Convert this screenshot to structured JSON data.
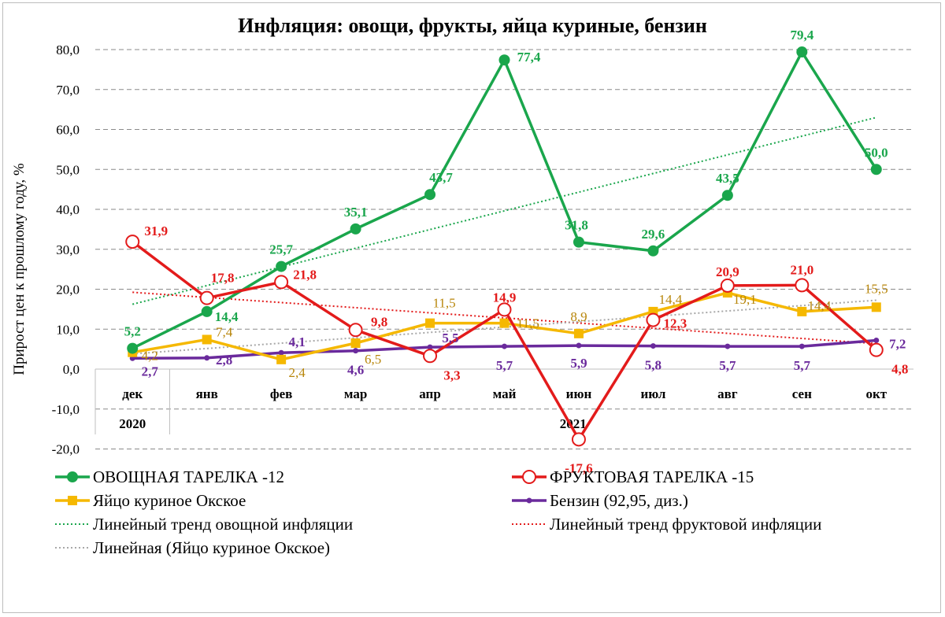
{
  "chart_data": {
    "type": "line",
    "title": "Инфляция: овощи, фрукты, яйца куриные, бензин",
    "ylabel": "Прирост цен к прошлому году, %",
    "ylim": [
      -20,
      80
    ],
    "yticks": [
      "-20,0",
      "-10,0",
      "0,0",
      "10,0",
      "20,0",
      "30,0",
      "40,0",
      "50,0",
      "60,0",
      "70,0",
      "80,0"
    ],
    "categories": [
      "дек",
      "янв",
      "фев",
      "мар",
      "апр",
      "май",
      "июн",
      "июл",
      "авг",
      "сен",
      "окт"
    ],
    "year_labels": [
      "2020",
      "2021"
    ],
    "grid": true,
    "legend_position": "bottom",
    "series": [
      {
        "name": "ОВОЩНАЯ ТАРЕЛКА -12",
        "color": "#1aa64c",
        "marker": "circle",
        "values": [
          5.2,
          14.4,
          25.7,
          35.1,
          43.7,
          77.4,
          31.8,
          29.6,
          43.5,
          79.4,
          50.0
        ],
        "labels": [
          "5,2",
          "14,4",
          "25,7",
          "35,1",
          "43,7",
          "77,4",
          "31,8",
          "29,6",
          "43,5",
          "79,4",
          "50,0"
        ]
      },
      {
        "name": "ФРУКТОВАЯ ТАРЕЛКА -15",
        "color": "#e31b1b",
        "marker": "open-circle",
        "values": [
          31.9,
          17.8,
          21.8,
          9.8,
          3.3,
          14.9,
          -17.6,
          12.3,
          20.9,
          21.0,
          4.8
        ],
        "labels": [
          "31,9",
          "17,8",
          "21,8",
          "9,8",
          "3,3",
          "14,9",
          "-17,6",
          "12,3",
          "20,9",
          "21,0",
          "4,8"
        ]
      },
      {
        "name": "Яйцо куриное Окское",
        "color": "#f5b800",
        "label_color": "#b8860b",
        "marker": "square",
        "values": [
          4.2,
          7.4,
          2.4,
          6.5,
          11.5,
          11.5,
          8.9,
          14.4,
          19.1,
          14.4,
          15.5
        ],
        "labels": [
          "4,2",
          "7,4",
          "2,4",
          "6,5",
          "11,5",
          "11,5",
          "8,9",
          "14,4",
          "19,1",
          "14,4",
          "15,5"
        ]
      },
      {
        "name": "Бензин (92,95, диз.)",
        "color": "#6a2a9c",
        "marker": "dot",
        "values": [
          2.7,
          2.8,
          4.1,
          4.6,
          5.5,
          5.7,
          5.9,
          5.8,
          5.7,
          5.7,
          7.2
        ],
        "labels": [
          "2,7",
          "2,8",
          "4,1",
          "4,6",
          "5,5",
          "5,7",
          "5,9",
          "5,8",
          "5,7",
          "5,7",
          "7,2"
        ]
      }
    ],
    "trends": [
      {
        "name": "Линейный тренд овощной инфляции",
        "color": "#1aa64c",
        "of_series": 0
      },
      {
        "name": "Линейный тренд фруктовой инфляции",
        "color": "#e31b1b",
        "of_series": 1
      },
      {
        "name": "Линейная (Яйцо куриное Окское)",
        "color": "#a8a8a8",
        "of_series": 2
      }
    ]
  }
}
